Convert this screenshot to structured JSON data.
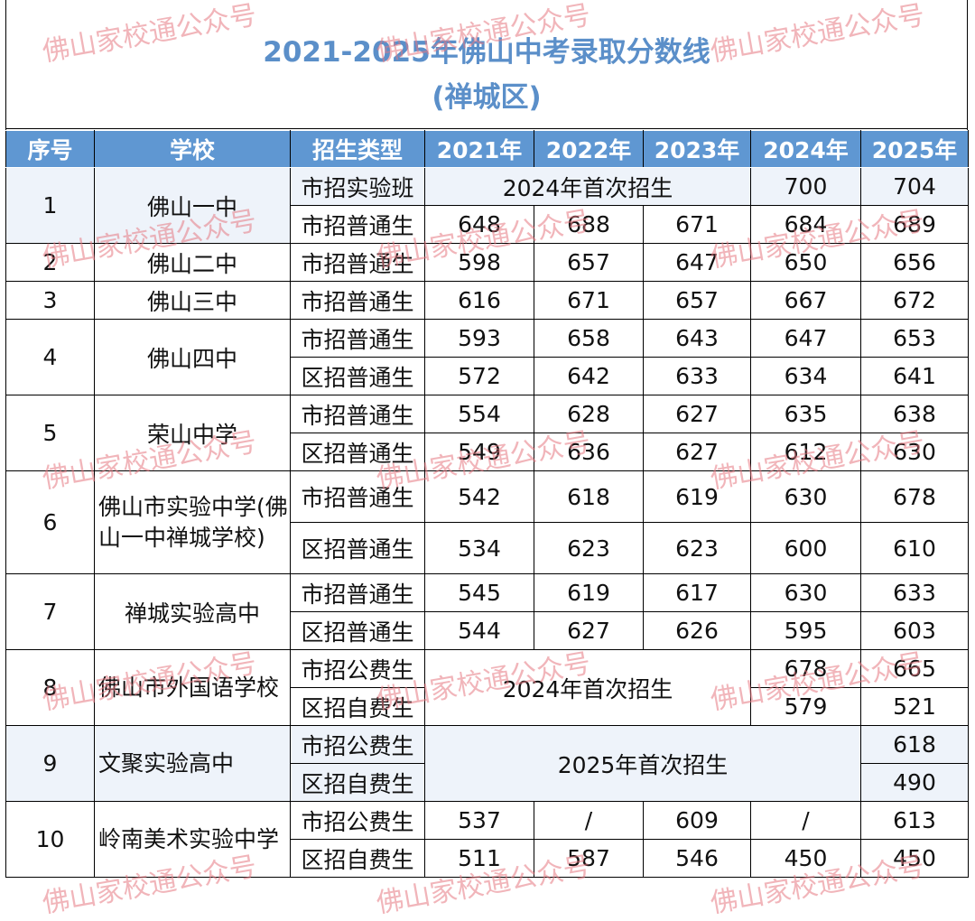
{
  "title": {
    "line1": "2021-2025年佛山中考录取分数线",
    "line2": "(禅城区)"
  },
  "headers": [
    "序号",
    "学校",
    "招生类型",
    "2021年",
    "2022年",
    "2023年",
    "2024年",
    "2025年"
  ],
  "rows": {
    "s1": {
      "no": "1",
      "school": "佛山一中",
      "r1": {
        "type": "市招实验班",
        "note": "2024年首次招生",
        "y2024": "700",
        "y2025": "704"
      },
      "r2": {
        "type": "市招普通生",
        "y2021": "648",
        "y2022": "688",
        "y2023": "671",
        "y2024": "684",
        "y2025": "689"
      }
    },
    "s2": {
      "no": "2",
      "school": "佛山二中",
      "r1": {
        "type": "市招普通生",
        "y2021": "598",
        "y2022": "657",
        "y2023": "647",
        "y2024": "650",
        "y2025": "656"
      }
    },
    "s3": {
      "no": "3",
      "school": "佛山三中",
      "r1": {
        "type": "市招普通生",
        "y2021": "616",
        "y2022": "671",
        "y2023": "657",
        "y2024": "667",
        "y2025": "672"
      }
    },
    "s4": {
      "no": "4",
      "school": "佛山四中",
      "r1": {
        "type": "市招普通生",
        "y2021": "593",
        "y2022": "658",
        "y2023": "643",
        "y2024": "647",
        "y2025": "653"
      },
      "r2": {
        "type": "区招普通生",
        "y2021": "572",
        "y2022": "642",
        "y2023": "633",
        "y2024": "634",
        "y2025": "641"
      }
    },
    "s5": {
      "no": "5",
      "school": "荣山中学",
      "r1": {
        "type": "市招普通生",
        "y2021": "554",
        "y2022": "628",
        "y2023": "627",
        "y2024": "635",
        "y2025": "638"
      },
      "r2": {
        "type": "区招普通生",
        "y2021": "549",
        "y2022": "636",
        "y2023": "627",
        "y2024": "612",
        "y2025": "630"
      }
    },
    "s6": {
      "no": "6",
      "school": "佛山市实验中学(佛山一中禅城学校)",
      "r1": {
        "type": "市招普通生",
        "y2021": "542",
        "y2022": "618",
        "y2023": "619",
        "y2024": "630",
        "y2025": "678"
      },
      "r2": {
        "type": "区招普通生",
        "y2021": "534",
        "y2022": "623",
        "y2023": "623",
        "y2024": "600",
        "y2025": "610"
      }
    },
    "s7": {
      "no": "7",
      "school": "禅城实验高中",
      "r1": {
        "type": "市招普通生",
        "y2021": "545",
        "y2022": "619",
        "y2023": "617",
        "y2024": "630",
        "y2025": "633"
      },
      "r2": {
        "type": "区招普通生",
        "y2021": "544",
        "y2022": "627",
        "y2023": "626",
        "y2024": "595",
        "y2025": "603"
      }
    },
    "s8": {
      "no": "8",
      "school": "佛山市外国语学校",
      "note": "2024年首次招生",
      "r1": {
        "type": "市招公费生",
        "y2024": "678",
        "y2025": "665"
      },
      "r2": {
        "type": "区招自费生",
        "y2024": "579",
        "y2025": "521"
      }
    },
    "s9": {
      "no": "9",
      "school": "文聚实验高中",
      "note": "2025年首次招生",
      "r1": {
        "type": "市招公费生",
        "y2025": "618"
      },
      "r2": {
        "type": "区招自费生",
        "y2025": "490"
      }
    },
    "s10": {
      "no": "10",
      "school": "岭南美术实验中学",
      "r1": {
        "type": "市招公费生",
        "y2021": "537",
        "y2022": "/",
        "y2023": "609",
        "y2024": "/",
        "y2025": "613"
      },
      "r2": {
        "type": "区招自费生",
        "y2021": "511",
        "y2022": "587",
        "y2023": "546",
        "y2024": "450",
        "y2025": "450"
      }
    }
  },
  "watermark": "佛山家校通公众号"
}
